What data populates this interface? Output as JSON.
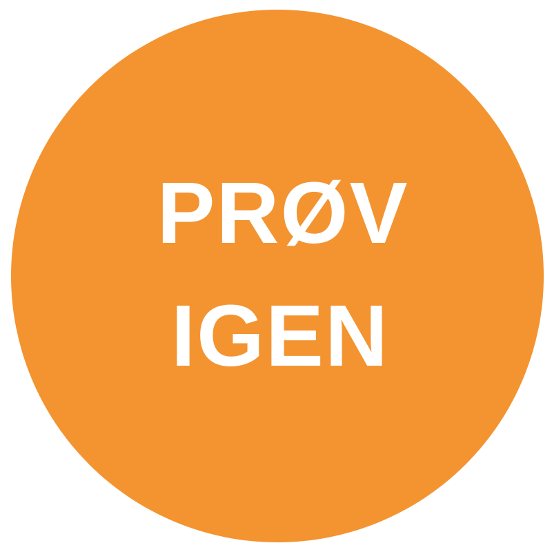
{
  "button": {
    "line1": "PRØV",
    "line2": "IGEN",
    "background_color": "#F39431",
    "text_color": "#FFFFFF"
  }
}
